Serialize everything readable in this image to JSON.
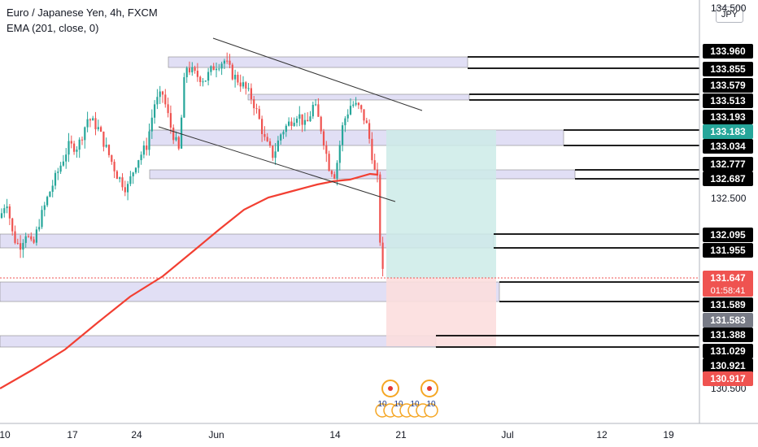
{
  "legend": {
    "title": "Euro / Japanese Yen, 4h, FXCM",
    "indicator": "EMA (201, close, 0)"
  },
  "currency_unit": "JPY",
  "colors": {
    "up": "#26a69a",
    "down": "#ef5350",
    "ema": "#f23f32",
    "zone_fill": "#e1dff5",
    "target_fill": "#cdebe7",
    "stop_fill": "#fcdede",
    "trendline": "#333333",
    "line_label_bg": "#000000",
    "current_price_bg": "#ef5350",
    "ask_label_bg": "#26a69a",
    "prev_close_bg": "#787b86"
  },
  "chart_data": {
    "type": "candlestick",
    "title": "Euro / Japanese Yen, 4h, FXCM",
    "ylim": [
      130.4,
      134.6
    ],
    "y_ticks": [
      "134.500",
      "132.500",
      "130.500"
    ],
    "x_ticks": [
      "10",
      "17",
      "24",
      "Jun",
      "14",
      "21",
      "Jul",
      "12",
      "19"
    ],
    "horizontal_levels": [
      "133.960",
      "133.855",
      "133.579",
      "133.513",
      "133.193",
      "133.034",
      "132.777",
      "132.687",
      "132.095",
      "131.955",
      "131.589",
      "131.388",
      "131.029",
      "130.921"
    ],
    "current_price": "131.647",
    "countdown": "01:58:41",
    "ask_price": "133.183",
    "prev_close": "131.583",
    "low_label": "130.917",
    "series": [
      {
        "name": "EMA (201, close, 0)",
        "type": "line"
      }
    ],
    "events_label": "10"
  }
}
